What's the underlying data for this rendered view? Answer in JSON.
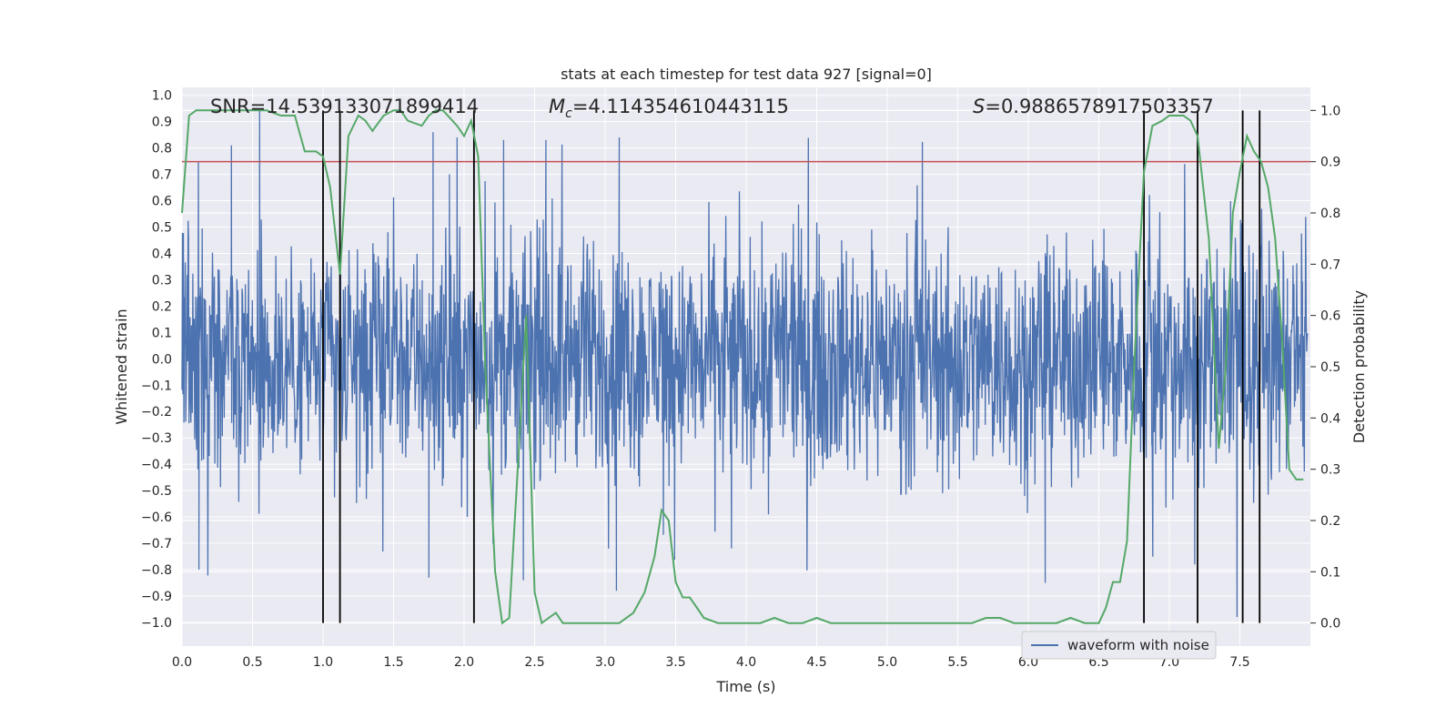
{
  "chart_data": {
    "type": "line",
    "title": "stats at each timestep for test data 927 [signal=0]",
    "xlabel": "Time (s)",
    "ylabel": "Whitened strain",
    "y2label": "Detection probability",
    "xlim": [
      0.0,
      8.0
    ],
    "ylim": [
      -1.09,
      1.03
    ],
    "y2lim": [
      -0.045,
      1.045
    ],
    "x_ticks": [
      "0.0",
      "0.5",
      "1.0",
      "1.5",
      "2.0",
      "2.5",
      "3.0",
      "3.5",
      "4.0",
      "4.5",
      "5.0",
      "5.5",
      "6.0",
      "6.5",
      "7.0",
      "7.5"
    ],
    "y_ticks": [
      "1.0",
      "0.9",
      "0.8",
      "0.7",
      "0.6",
      "0.5",
      "0.4",
      "0.3",
      "0.2",
      "0.1",
      "0.0",
      "-0.1",
      "-0.2",
      "-0.3",
      "-0.4",
      "-0.5",
      "-0.6",
      "-0.7",
      "-0.8",
      "-0.9",
      "-1.0"
    ],
    "y2_ticks": [
      "1.0",
      "0.9",
      "0.8",
      "0.7",
      "0.6",
      "0.5",
      "0.4",
      "0.3",
      "0.2",
      "0.1",
      "0.0"
    ],
    "annotations": {
      "snr": "SNR=14.539133071899414",
      "mc_symbol": "M",
      "mc_subscript": "c",
      "mc_value": "=4.114354610443115",
      "s_symbol": "S",
      "s_value": "=0.9886578917503357"
    },
    "threshold": 0.9,
    "event_times": [
      1.0,
      1.12,
      2.07,
      6.82,
      7.2,
      7.52,
      7.64
    ],
    "legend": [
      {
        "label": "waveform with noise",
        "color": "#4c72b0"
      }
    ],
    "series": [
      {
        "name": "waveform with noise",
        "axis": "left",
        "color": "#4c72b0",
        "note": "noise waveform, typical band +/-0.45, peaks to about +/-0.95",
        "peaks": [
          {
            "x": 0.55,
            "y": 0.95
          },
          {
            "x": 0.35,
            "y": 0.81
          },
          {
            "x": 0.12,
            "y": -0.8
          },
          {
            "x": 1.78,
            "y": 0.86
          },
          {
            "x": 1.95,
            "y": 0.84
          },
          {
            "x": 2.28,
            "y": 0.83
          },
          {
            "x": 2.58,
            "y": 0.83
          },
          {
            "x": 3.1,
            "y": 0.84
          },
          {
            "x": 3.08,
            "y": -0.88
          },
          {
            "x": 1.75,
            "y": -0.83
          },
          {
            "x": 6.12,
            "y": -0.85
          },
          {
            "x": 7.48,
            "y": -0.98
          },
          {
            "x": 7.18,
            "y": -0.78
          },
          {
            "x": 2.42,
            "y": -0.84
          }
        ]
      },
      {
        "name": "detection probability",
        "axis": "right",
        "color": "#55a868",
        "x": [
          0.0,
          0.05,
          0.1,
          0.15,
          0.2,
          0.3,
          0.4,
          0.5,
          0.6,
          0.7,
          0.8,
          0.87,
          0.95,
          1.0,
          1.05,
          1.12,
          1.18,
          1.25,
          1.3,
          1.35,
          1.43,
          1.5,
          1.55,
          1.6,
          1.7,
          1.75,
          1.8,
          1.85,
          1.95,
          2.0,
          2.05,
          2.1,
          2.15,
          2.22,
          2.27,
          2.32,
          2.38,
          2.44,
          2.5,
          2.55,
          2.6,
          2.65,
          2.7,
          2.75,
          2.85,
          3.0,
          3.1,
          3.2,
          3.28,
          3.35,
          3.4,
          3.45,
          3.5,
          3.55,
          3.6,
          3.7,
          3.8,
          3.9,
          4.0,
          4.1,
          4.2,
          4.3,
          4.4,
          4.5,
          4.6,
          4.7,
          4.8,
          4.9,
          5.0,
          5.1,
          5.2,
          5.3,
          5.4,
          5.5,
          5.6,
          5.7,
          5.8,
          5.9,
          6.0,
          6.1,
          6.2,
          6.3,
          6.4,
          6.5,
          6.55,
          6.6,
          6.65,
          6.7,
          6.75,
          6.82,
          6.88,
          6.95,
          7.0,
          7.05,
          7.1,
          7.15,
          7.2,
          7.28,
          7.35,
          7.4,
          7.45,
          7.5,
          7.55,
          7.6,
          7.65,
          7.7,
          7.75,
          7.8,
          7.85,
          7.9,
          7.95
        ],
        "y": [
          0.8,
          0.99,
          1.0,
          1.0,
          1.0,
          1.0,
          1.0,
          1.0,
          1.0,
          0.99,
          0.99,
          0.92,
          0.92,
          0.91,
          0.85,
          0.68,
          0.95,
          0.99,
          0.98,
          0.96,
          0.99,
          1.0,
          1.0,
          0.98,
          0.97,
          0.99,
          1.0,
          1.0,
          0.97,
          0.95,
          0.98,
          0.91,
          0.5,
          0.1,
          0.0,
          0.01,
          0.3,
          0.6,
          0.06,
          0.0,
          0.01,
          0.02,
          0.0,
          0.0,
          0.0,
          0.0,
          0.0,
          0.02,
          0.06,
          0.13,
          0.22,
          0.2,
          0.08,
          0.05,
          0.05,
          0.01,
          0.0,
          0.0,
          0.0,
          0.0,
          0.01,
          0.0,
          0.0,
          0.01,
          0.0,
          0.0,
          0.0,
          0.0,
          0.0,
          0.0,
          0.0,
          0.0,
          0.0,
          0.0,
          0.0,
          0.01,
          0.01,
          0.0,
          0.0,
          0.0,
          0.0,
          0.01,
          0.0,
          0.0,
          0.03,
          0.08,
          0.08,
          0.16,
          0.5,
          0.88,
          0.97,
          0.98,
          0.99,
          0.99,
          0.99,
          0.98,
          0.95,
          0.75,
          0.34,
          0.5,
          0.8,
          0.88,
          0.95,
          0.92,
          0.9,
          0.85,
          0.75,
          0.55,
          0.3,
          0.28,
          0.28
        ]
      }
    ]
  }
}
